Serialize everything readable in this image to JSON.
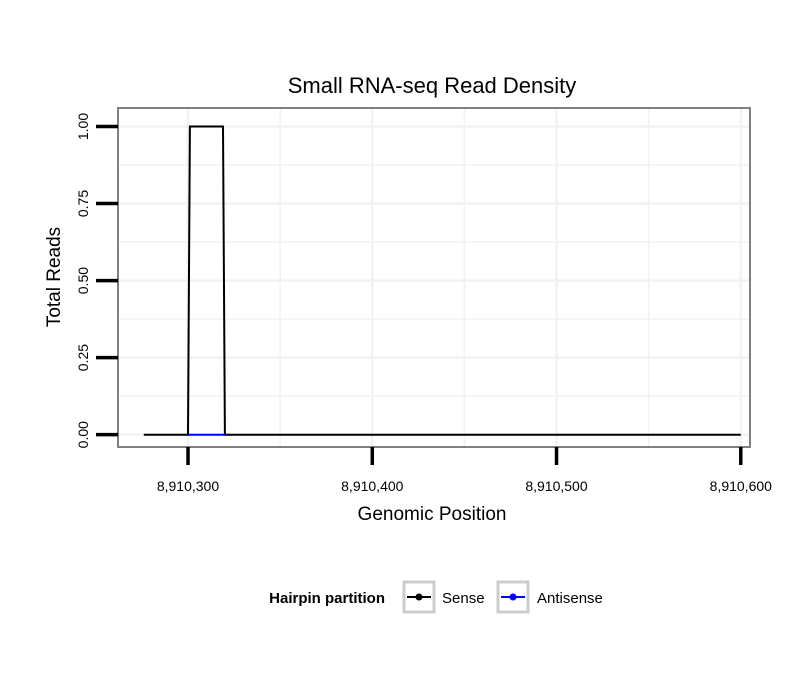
{
  "chart_data": {
    "type": "line",
    "title": "Small RNA-seq Read Density",
    "xlabel": "Genomic Position",
    "ylabel": "Total Reads",
    "xlim": [
      8910262,
      8910605
    ],
    "ylim": [
      -0.04,
      1.06
    ],
    "x_ticks": [
      8910300,
      8910400,
      8910500,
      8910600
    ],
    "x_tick_labels": [
      "8,910,300",
      "8,910,400",
      "8,910,500",
      "8,910,600"
    ],
    "y_ticks": [
      0,
      0.25,
      0.5,
      0.75,
      1
    ],
    "y_tick_labels": [
      "0.00",
      "0.25",
      "0.50",
      "0.75",
      "1.00"
    ],
    "grid": true,
    "legend": {
      "title": "Hairpin partition",
      "position": "bottom",
      "entries": [
        {
          "name": "Sense",
          "color": "#000000"
        },
        {
          "name": "Antisense",
          "color": "#0000ff"
        }
      ]
    },
    "series": [
      {
        "name": "Sense",
        "color": "#000000",
        "x": [
          8910276,
          8910300,
          8910301,
          8910319,
          8910320,
          8910600
        ],
        "y": [
          0,
          0,
          1,
          1,
          0,
          0
        ]
      },
      {
        "name": "Antisense",
        "color": "#0000ff",
        "x": [
          8910300,
          8910320
        ],
        "y": [
          0,
          0
        ]
      }
    ]
  }
}
